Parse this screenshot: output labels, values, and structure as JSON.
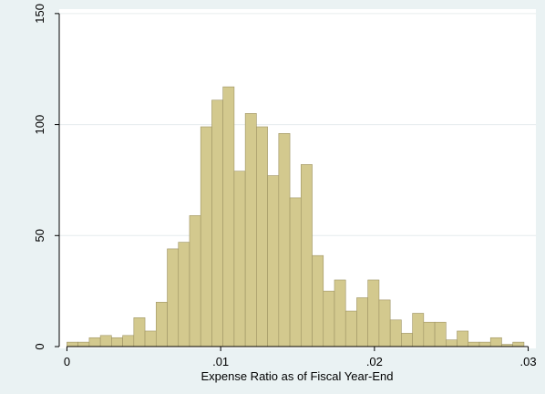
{
  "chart_data": {
    "type": "bar",
    "subtype": "histogram",
    "title": "",
    "xlabel": "Expense Ratio as of Fiscal Year-End",
    "ylabel": "",
    "xlim": [
      -0.0005,
      0.0305
    ],
    "ylim": [
      0,
      152
    ],
    "x_ticks": [
      0,
      0.01,
      0.02,
      0.03
    ],
    "x_tick_labels": [
      "0",
      ".01",
      ".02",
      ".03"
    ],
    "y_ticks": [
      0,
      50,
      100,
      150
    ],
    "y_tick_labels": [
      "0",
      "50",
      "100",
      "150"
    ],
    "grid": "horizontal",
    "legend": "none",
    "bin_width": 0.000725,
    "bin_start": 0,
    "counts": [
      2,
      2,
      4,
      5,
      4,
      5,
      13,
      7,
      20,
      44,
      47,
      59,
      99,
      111,
      117,
      79,
      105,
      99,
      77,
      96,
      67,
      82,
      41,
      25,
      30,
      16,
      22,
      30,
      21,
      12,
      6,
      15,
      11,
      11,
      3,
      7,
      2,
      2,
      4,
      1,
      2
    ],
    "colors": {
      "bar_fill": "#d3c98e",
      "bar_stroke": "#9e9464",
      "plot_bg": "#ffffff",
      "page_bg": "#eaf2f3",
      "grid": "#e6ecee"
    }
  }
}
